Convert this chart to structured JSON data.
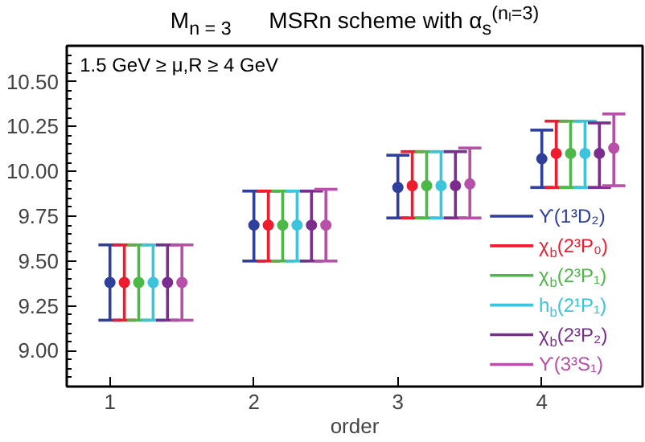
{
  "chart_data": {
    "type": "scatter",
    "title": "M$_{n = 3}$      MSRn scheme with α$_{s}$$^{(nₗ=3)}$",
    "xlabel": "order",
    "annotations": [
      "1.5 GeV ≥ μ,R ≥ 4 GeV"
    ],
    "xlim": [
      0.7,
      4.7
    ],
    "xticks": [
      1,
      2,
      3,
      4
    ],
    "ylim": [
      8.8,
      10.7
    ],
    "yticks": [
      {
        "value": 9,
        "label": "9.00"
      },
      {
        "value": 9.25,
        "label": "9.25"
      },
      {
        "value": 9.5,
        "label": "9.50"
      },
      {
        "value": 9.75,
        "label": "9.75"
      },
      {
        "value": 10,
        "label": "10.00"
      },
      {
        "value": 10.25,
        "label": "10.25"
      },
      {
        "value": 10.5,
        "label": "10.50"
      }
    ],
    "grid": false,
    "legend": "right",
    "marker": "circle",
    "series": [
      {
        "name": "ϒ(1³D₂)",
        "color": "#2e3f9c",
        "x": [
          1,
          2,
          3,
          4
        ],
        "values": [
          9.38,
          9.7,
          9.91,
          10.07
        ],
        "errors": [
          [
            9.17,
            9.59
          ],
          [
            9.5,
            9.89
          ],
          [
            9.74,
            10.09
          ],
          [
            9.91,
            10.23
          ]
        ]
      },
      {
        "name": "χ$_{b}$(2³P₀)",
        "color": "#ee1c2e",
        "x": [
          1.1,
          2.1,
          3.1,
          4.1
        ],
        "values": [
          9.38,
          9.7,
          9.92,
          10.1
        ],
        "errors": [
          [
            9.17,
            9.59
          ],
          [
            9.5,
            9.89
          ],
          [
            9.74,
            10.11
          ],
          [
            9.91,
            10.28
          ]
        ]
      },
      {
        "name": "χ$_{b}$(2³P₁)",
        "color": "#4cb848",
        "x": [
          1.2,
          2.2,
          3.2,
          4.2
        ],
        "values": [
          9.38,
          9.7,
          9.92,
          10.1
        ],
        "errors": [
          [
            9.17,
            9.59
          ],
          [
            9.5,
            9.89
          ],
          [
            9.74,
            10.11
          ],
          [
            9.91,
            10.28
          ]
        ]
      },
      {
        "name": "h$_{b}$(2¹P₁)",
        "color": "#3bc4dc",
        "x": [
          1.3,
          2.3,
          3.3,
          4.3
        ],
        "values": [
          9.38,
          9.7,
          9.92,
          10.1
        ],
        "errors": [
          [
            9.17,
            9.59
          ],
          [
            9.5,
            9.89
          ],
          [
            9.74,
            10.11
          ],
          [
            9.91,
            10.28
          ]
        ]
      },
      {
        "name": "χ$_{b}$(2³P₂)",
        "color": "#7b2d8e",
        "x": [
          1.4,
          2.4,
          3.4,
          4.4
        ],
        "values": [
          9.38,
          9.7,
          9.92,
          10.1
        ],
        "errors": [
          [
            9.17,
            9.59
          ],
          [
            9.5,
            9.89
          ],
          [
            9.74,
            10.11
          ],
          [
            9.91,
            10.27
          ]
        ]
      },
      {
        "name": "ϒ(3³S₁)",
        "color": "#b84fa8",
        "x": [
          1.5,
          2.5,
          3.5,
          4.5
        ],
        "values": [
          9.38,
          9.7,
          9.93,
          10.13
        ],
        "errors": [
          [
            9.17,
            9.59
          ],
          [
            9.5,
            9.9
          ],
          [
            9.74,
            10.13
          ],
          [
            9.92,
            10.32
          ]
        ]
      }
    ]
  }
}
